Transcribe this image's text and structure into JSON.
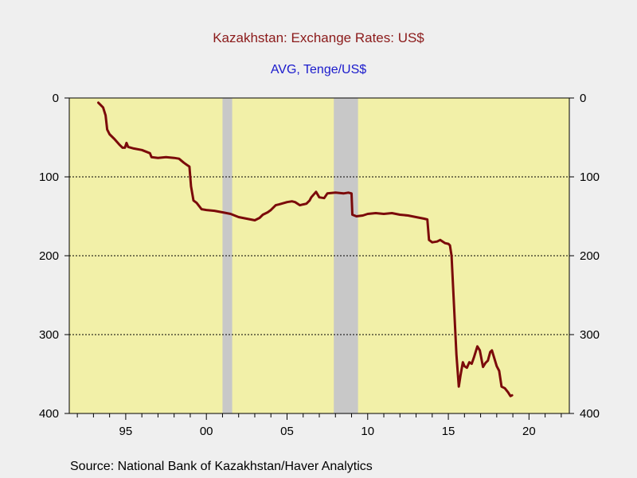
{
  "colors": {
    "page_bg": "#efefef",
    "plot_bg": "#f2f0a8",
    "recession": "#c8c8c8",
    "line": "#7b0a0a",
    "title": "#8b1a1a",
    "subtitle": "#1a1acc"
  },
  "source": "Source:  National Bank of Kazakhstan/Haver Analytics",
  "chart_data": {
    "type": "line",
    "title": "Kazakhstan: Exchange Rates: US$",
    "subtitle": "AVG, Tenge/US$",
    "xlabel": "",
    "ylabel": "",
    "y_inverted": true,
    "xlim": [
      1991.5,
      2022.5
    ],
    "ylim": [
      0,
      400
    ],
    "x_ticks": [
      1995,
      2000,
      2005,
      2010,
      2015,
      2020
    ],
    "x_tick_labels": [
      "95",
      "00",
      "05",
      "10",
      "15",
      "20"
    ],
    "y_ticks": [
      0,
      100,
      200,
      300,
      400
    ],
    "y_tick_labels": [
      "0",
      "100",
      "200",
      "300",
      "400"
    ],
    "grid": "horizontal dotted",
    "recessions": [
      [
        2001.0,
        2001.6
      ],
      [
        2007.9,
        2009.4
      ]
    ],
    "series": [
      {
        "name": "",
        "x": [
          1993.3,
          1993.6,
          1993.75,
          1993.85,
          1994.0,
          1994.3,
          1994.6,
          1994.8,
          1994.95,
          1995.05,
          1995.15,
          1995.5,
          1996.0,
          1996.5,
          1996.6,
          1997.0,
          1997.5,
          1998.0,
          1998.3,
          1998.6,
          1998.8,
          1998.95,
          1999.05,
          1999.2,
          1999.4,
          1999.7,
          2000.0,
          2000.5,
          2001.0,
          2001.5,
          2002.0,
          2002.5,
          2003.0,
          2003.3,
          2003.5,
          2003.8,
          2004.0,
          2004.3,
          2004.5,
          2005.0,
          2005.3,
          2005.5,
          2005.8,
          2006.0,
          2006.2,
          2006.4,
          2006.5,
          2006.8,
          2007.0,
          2007.3,
          2007.5,
          2008.0,
          2008.5,
          2008.8,
          2009.0,
          2009.05,
          2009.3,
          2009.7,
          2010.0,
          2010.5,
          2011.0,
          2011.5,
          2012.0,
          2012.5,
          2013.0,
          2013.5,
          2013.7,
          2013.8,
          2014.0,
          2014.3,
          2014.5,
          2014.8,
          2015.0,
          2015.1,
          2015.2,
          2015.5,
          2015.65,
          2015.75,
          2015.9,
          2016.0,
          2016.15,
          2016.3,
          2016.45,
          2016.6,
          2016.8,
          2016.95,
          2017.15,
          2017.3,
          2017.45,
          2017.6,
          2017.7,
          2017.85,
          2018.0,
          2018.15,
          2018.3,
          2018.5,
          2018.7,
          2018.85,
          2018.95
        ],
        "y": [
          6,
          12,
          22,
          40,
          46,
          52,
          59,
          63,
          63,
          57,
          62,
          64,
          66,
          70,
          75,
          76,
          75,
          76,
          77,
          82,
          85,
          87,
          112,
          130,
          133,
          141,
          142,
          143,
          145,
          147,
          151,
          153,
          155,
          152,
          148,
          145,
          142,
          136,
          135,
          132,
          131,
          132,
          136,
          135,
          134,
          130,
          126,
          119,
          126,
          127,
          121,
          120,
          121,
          120,
          121,
          148,
          150,
          149,
          147,
          146,
          147,
          146,
          148,
          149,
          151,
          153,
          154,
          180,
          183,
          182,
          180,
          184,
          185,
          187,
          200,
          325,
          366,
          352,
          335,
          340,
          342,
          335,
          337,
          328,
          315,
          320,
          341,
          336,
          333,
          322,
          320,
          330,
          340,
          346,
          366,
          368,
          373,
          378,
          377
        ]
      }
    ]
  }
}
